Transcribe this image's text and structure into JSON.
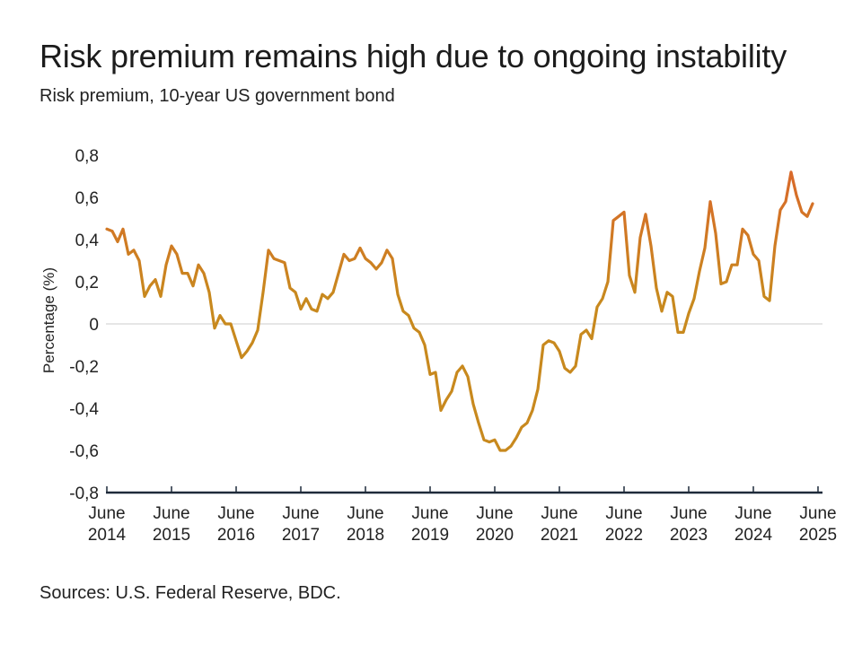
{
  "title": "Risk premium remains high due to ongoing instability",
  "subtitle": "Risk premium, 10-year US government bond",
  "source": "Sources: U.S. Federal Reserve, BDC.",
  "colors": {
    "line": "#c8891e",
    "line_highlight": "#d9692a",
    "axis": "#1e2a3a",
    "zero_line": "#cccccc"
  },
  "chart_data": {
    "type": "line",
    "title": "Risk premium remains high due to ongoing instability",
    "ylabel": "Percentage (%)",
    "xlabel": "",
    "ylim": [
      -0.8,
      0.8
    ],
    "yticks": [
      0.8,
      0.6,
      0.4,
      0.2,
      0,
      -0.2,
      -0.4,
      -0.6,
      -0.8
    ],
    "ytick_labels": [
      "0,8",
      "0,6",
      "0,4",
      "0,2",
      "0",
      "-0,2",
      "-0,4",
      "-0,6",
      "-0,8"
    ],
    "xlim": [
      "2014-06",
      "2025-07"
    ],
    "xticks": [
      {
        "date": "2014-06",
        "label1": "June",
        "label2": "2014"
      },
      {
        "date": "2015-06",
        "label1": "June",
        "label2": "2015"
      },
      {
        "date": "2016-06",
        "label1": "June",
        "label2": "2016"
      },
      {
        "date": "2017-06",
        "label1": "June",
        "label2": "2017"
      },
      {
        "date": "2018-06",
        "label1": "June",
        "label2": "2018"
      },
      {
        "date": "2019-06",
        "label1": "June",
        "label2": "2019"
      },
      {
        "date": "2020-06",
        "label1": "June",
        "label2": "2020"
      },
      {
        "date": "2021-06",
        "label1": "June",
        "label2": "2021"
      },
      {
        "date": "2022-06",
        "label1": "June",
        "label2": "2022"
      },
      {
        "date": "2023-06",
        "label1": "June",
        "label2": "2023"
      },
      {
        "date": "2024-06",
        "label1": "June",
        "label2": "2024"
      },
      {
        "date": "2025-06",
        "label1": "June",
        "label2": "2025"
      }
    ],
    "grid": false,
    "series": [
      {
        "values": [
          [
            "2014-06",
            0.45
          ],
          [
            "2014-07",
            0.44
          ],
          [
            "2014-08",
            0.39
          ],
          [
            "2014-09",
            0.45
          ],
          [
            "2014-10",
            0.33
          ],
          [
            "2014-11",
            0.35
          ],
          [
            "2014-12",
            0.3
          ],
          [
            "2015-01",
            0.13
          ],
          [
            "2015-02",
            0.18
          ],
          [
            "2015-03",
            0.21
          ],
          [
            "2015-04",
            0.13
          ],
          [
            "2015-05",
            0.28
          ],
          [
            "2015-06",
            0.37
          ],
          [
            "2015-07",
            0.33
          ],
          [
            "2015-08",
            0.24
          ],
          [
            "2015-09",
            0.24
          ],
          [
            "2015-10",
            0.18
          ],
          [
            "2015-11",
            0.28
          ],
          [
            "2015-12",
            0.24
          ],
          [
            "2016-01",
            0.15
          ],
          [
            "2016-02",
            -0.02
          ],
          [
            "2016-03",
            0.04
          ],
          [
            "2016-04",
            0.0
          ],
          [
            "2016-05",
            0.0
          ],
          [
            "2016-06",
            -0.08
          ],
          [
            "2016-07",
            -0.16
          ],
          [
            "2016-08",
            -0.13
          ],
          [
            "2016-09",
            -0.09
          ],
          [
            "2016-10",
            -0.03
          ],
          [
            "2016-11",
            0.15
          ],
          [
            "2016-12",
            0.35
          ],
          [
            "2017-01",
            0.31
          ],
          [
            "2017-02",
            0.3
          ],
          [
            "2017-03",
            0.29
          ],
          [
            "2017-04",
            0.17
          ],
          [
            "2017-05",
            0.15
          ],
          [
            "2017-06",
            0.07
          ],
          [
            "2017-07",
            0.12
          ],
          [
            "2017-08",
            0.07
          ],
          [
            "2017-09",
            0.06
          ],
          [
            "2017-10",
            0.14
          ],
          [
            "2017-11",
            0.12
          ],
          [
            "2017-12",
            0.15
          ],
          [
            "2018-01",
            0.24
          ],
          [
            "2018-02",
            0.33
          ],
          [
            "2018-03",
            0.3
          ],
          [
            "2018-04",
            0.31
          ],
          [
            "2018-05",
            0.36
          ],
          [
            "2018-06",
            0.31
          ],
          [
            "2018-07",
            0.29
          ],
          [
            "2018-08",
            0.26
          ],
          [
            "2018-09",
            0.29
          ],
          [
            "2018-10",
            0.35
          ],
          [
            "2018-11",
            0.31
          ],
          [
            "2018-12",
            0.14
          ],
          [
            "2019-01",
            0.06
          ],
          [
            "2019-02",
            0.04
          ],
          [
            "2019-03",
            -0.02
          ],
          [
            "2019-04",
            -0.04
          ],
          [
            "2019-05",
            -0.1
          ],
          [
            "2019-06",
            -0.24
          ],
          [
            "2019-07",
            -0.23
          ],
          [
            "2019-08",
            -0.41
          ],
          [
            "2019-09",
            -0.36
          ],
          [
            "2019-10",
            -0.32
          ],
          [
            "2019-11",
            -0.23
          ],
          [
            "2019-12",
            -0.2
          ],
          [
            "2020-01",
            -0.25
          ],
          [
            "2020-02",
            -0.38
          ],
          [
            "2020-03",
            -0.47
          ],
          [
            "2020-04",
            -0.55
          ],
          [
            "2020-05",
            -0.56
          ],
          [
            "2020-06",
            -0.55
          ],
          [
            "2020-07",
            -0.6
          ],
          [
            "2020-08",
            -0.6
          ],
          [
            "2020-09",
            -0.58
          ],
          [
            "2020-10",
            -0.54
          ],
          [
            "2020-11",
            -0.49
          ],
          [
            "2020-12",
            -0.47
          ],
          [
            "2021-01",
            -0.41
          ],
          [
            "2021-02",
            -0.31
          ],
          [
            "2021-03",
            -0.1
          ],
          [
            "2021-04",
            -0.08
          ],
          [
            "2021-05",
            -0.09
          ],
          [
            "2021-06",
            -0.13
          ],
          [
            "2021-07",
            -0.21
          ],
          [
            "2021-08",
            -0.23
          ],
          [
            "2021-09",
            -0.2
          ],
          [
            "2021-10",
            -0.05
          ],
          [
            "2021-11",
            -0.03
          ],
          [
            "2021-12",
            -0.07
          ],
          [
            "2022-01",
            0.08
          ],
          [
            "2022-02",
            0.12
          ],
          [
            "2022-03",
            0.2
          ],
          [
            "2022-04",
            0.49
          ],
          [
            "2022-05",
            0.51
          ],
          [
            "2022-06",
            0.53
          ],
          [
            "2022-07",
            0.23
          ],
          [
            "2022-08",
            0.15
          ],
          [
            "2022-09",
            0.41
          ],
          [
            "2022-10",
            0.52
          ],
          [
            "2022-11",
            0.37
          ],
          [
            "2022-12",
            0.17
          ],
          [
            "2023-01",
            0.06
          ],
          [
            "2023-02",
            0.15
          ],
          [
            "2023-03",
            0.13
          ],
          [
            "2023-04",
            -0.04
          ],
          [
            "2023-05",
            -0.04
          ],
          [
            "2023-06",
            0.05
          ],
          [
            "2023-07",
            0.12
          ],
          [
            "2023-08",
            0.25
          ],
          [
            "2023-09",
            0.36
          ],
          [
            "2023-10",
            0.58
          ],
          [
            "2023-11",
            0.43
          ],
          [
            "2023-12",
            0.19
          ],
          [
            "2024-01",
            0.2
          ],
          [
            "2024-02",
            0.28
          ],
          [
            "2024-03",
            0.28
          ],
          [
            "2024-04",
            0.45
          ],
          [
            "2024-05",
            0.42
          ],
          [
            "2024-06",
            0.33
          ],
          [
            "2024-07",
            0.3
          ],
          [
            "2024-08",
            0.13
          ],
          [
            "2024-09",
            0.11
          ],
          [
            "2024-10",
            0.37
          ],
          [
            "2024-11",
            0.54
          ],
          [
            "2024-12",
            0.58
          ],
          [
            "2025-01",
            0.72
          ],
          [
            "2025-02",
            0.61
          ],
          [
            "2025-03",
            0.53
          ],
          [
            "2025-04",
            0.51
          ],
          [
            "2025-05",
            0.57
          ]
        ]
      }
    ]
  }
}
